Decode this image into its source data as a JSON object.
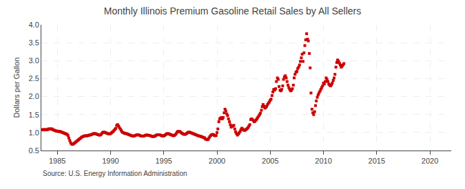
{
  "chart_data": {
    "type": "scatter",
    "title": "Monthly Illinois Premium Gasoline Retail Sales by All Sellers",
    "ylabel": "Dollars per Gallon",
    "annotations": [
      "Source: U.S. Energy Information Administration"
    ],
    "color": "#cc0000",
    "marker": "square",
    "grid": true,
    "xlim": [
      1983.5,
      2022
    ],
    "ylim": [
      0.5,
      4.0
    ],
    "xticks": [
      1985,
      1990,
      1995,
      2000,
      2005,
      2010,
      2015,
      2020
    ],
    "yticks": [
      0.5,
      {
        "value": 1.0,
        "label": "1.0"
      },
      1.5,
      {
        "value": 2.0,
        "label": "2.0"
      },
      2.5,
      {
        "value": 3.0,
        "label": "3.0"
      },
      3.5,
      {
        "value": 4.0,
        "label": "4.0"
      }
    ],
    "x": [
      1983.58,
      1983.67,
      1983.75,
      1983.83,
      1983.92,
      1984.0,
      1984.08,
      1984.17,
      1984.25,
      1984.33,
      1984.42,
      1984.5,
      1984.58,
      1984.67,
      1984.75,
      1984.83,
      1984.92,
      1985.0,
      1985.08,
      1985.17,
      1985.25,
      1985.33,
      1985.42,
      1985.5,
      1985.58,
      1985.67,
      1985.75,
      1985.83,
      1985.92,
      1986.0,
      1986.08,
      1986.17,
      1986.25,
      1986.33,
      1986.42,
      1986.5,
      1986.58,
      1986.67,
      1986.75,
      1986.83,
      1986.92,
      1987.0,
      1987.08,
      1987.17,
      1987.25,
      1987.33,
      1987.42,
      1987.5,
      1987.58,
      1987.67,
      1987.75,
      1987.83,
      1987.92,
      1988.0,
      1988.08,
      1988.17,
      1988.25,
      1988.33,
      1988.42,
      1988.5,
      1988.58,
      1988.67,
      1988.75,
      1988.83,
      1988.92,
      1989.0,
      1989.08,
      1989.17,
      1989.25,
      1989.33,
      1989.42,
      1989.5,
      1989.58,
      1989.67,
      1989.75,
      1989.83,
      1989.92,
      1990.0,
      1990.08,
      1990.17,
      1990.25,
      1990.33,
      1990.42,
      1990.5,
      1990.58,
      1990.67,
      1990.75,
      1990.83,
      1990.92,
      1991.0,
      1991.08,
      1991.17,
      1991.25,
      1991.33,
      1991.42,
      1991.5,
      1991.58,
      1991.67,
      1991.75,
      1991.83,
      1991.92,
      1992.0,
      1992.08,
      1992.17,
      1992.25,
      1992.33,
      1992.42,
      1992.5,
      1992.58,
      1992.67,
      1992.75,
      1992.83,
      1992.92,
      1993.0,
      1993.08,
      1993.17,
      1993.25,
      1993.33,
      1993.42,
      1993.5,
      1993.58,
      1993.67,
      1993.75,
      1993.83,
      1993.92,
      1994.0,
      1994.08,
      1994.17,
      1994.25,
      1994.33,
      1994.42,
      1994.5,
      1994.58,
      1994.67,
      1994.75,
      1994.83,
      1994.92,
      1995.0,
      1995.08,
      1995.17,
      1995.25,
      1995.33,
      1995.42,
      1995.5,
      1995.58,
      1995.67,
      1995.75,
      1995.83,
      1995.92,
      1996.0,
      1996.08,
      1996.17,
      1996.25,
      1996.33,
      1996.42,
      1996.5,
      1996.58,
      1996.67,
      1996.75,
      1996.83,
      1996.92,
      1997.0,
      1997.08,
      1997.17,
      1997.25,
      1997.33,
      1997.42,
      1997.5,
      1997.58,
      1997.67,
      1997.75,
      1997.83,
      1997.92,
      1998.0,
      1998.08,
      1998.17,
      1998.25,
      1998.33,
      1998.42,
      1998.5,
      1998.58,
      1998.67,
      1998.75,
      1998.83,
      1998.92,
      1999.0,
      1999.08,
      1999.17,
      1999.25,
      1999.33,
      1999.42,
      1999.5,
      1999.58,
      1999.67,
      1999.75,
      1999.83,
      1999.92,
      2000.0,
      2000.08,
      2000.17,
      2000.25,
      2000.33,
      2000.42,
      2000.5,
      2000.58,
      2000.67,
      2000.75,
      2000.83,
      2000.92,
      2001.0,
      2001.08,
      2001.17,
      2001.25,
      2001.33,
      2001.42,
      2001.5,
      2001.58,
      2001.67,
      2001.75,
      2001.83,
      2001.92,
      2002.0,
      2002.08,
      2002.17,
      2002.25,
      2002.33,
      2002.42,
      2002.5,
      2002.58,
      2002.67,
      2002.75,
      2002.83,
      2002.92,
      2003.0,
      2003.08,
      2003.17,
      2003.25,
      2003.33,
      2003.42,
      2003.5,
      2003.58,
      2003.67,
      2003.75,
      2003.83,
      2003.92,
      2004.0,
      2004.08,
      2004.17,
      2004.25,
      2004.33,
      2004.42,
      2004.5,
      2004.58,
      2004.67,
      2004.75,
      2004.83,
      2004.92,
      2005.0,
      2005.08,
      2005.17,
      2005.25,
      2005.33,
      2005.42,
      2005.5,
      2005.58,
      2005.67,
      2005.75,
      2005.83,
      2005.92,
      2006.0,
      2006.08,
      2006.17,
      2006.25,
      2006.33,
      2006.42,
      2006.5,
      2006.58,
      2006.67,
      2006.75,
      2006.83,
      2006.92,
      2007.0,
      2007.08,
      2007.17,
      2007.25,
      2007.33,
      2007.42,
      2007.5,
      2007.58,
      2007.67,
      2007.75,
      2007.83,
      2007.92,
      2008.0,
      2008.08,
      2008.17,
      2008.25,
      2008.33,
      2008.42,
      2008.5,
      2008.58,
      2008.67,
      2008.75,
      2008.83,
      2008.92,
      2009.0,
      2009.08,
      2009.17,
      2009.25,
      2009.33,
      2009.42,
      2009.5,
      2009.58,
      2009.67,
      2009.75,
      2009.83,
      2009.92,
      2010.0,
      2010.08,
      2010.17,
      2010.25,
      2010.33,
      2010.42,
      2010.5,
      2010.58,
      2010.67,
      2010.75,
      2010.83,
      2010.92,
      2011.0,
      2011.08,
      2011.17,
      2011.25,
      2011.33,
      2011.42,
      2011.5,
      2011.58,
      2011.67,
      2011.75,
      2011.83,
      2011.92
    ],
    "values": [
      1.08,
      1.08,
      1.08,
      1.08,
      1.08,
      1.08,
      1.08,
      1.1,
      1.1,
      1.1,
      1.1,
      1.1,
      1.08,
      1.07,
      1.06,
      1.05,
      1.04,
      1.04,
      1.03,
      1.03,
      1.03,
      1.02,
      1.01,
      1.0,
      0.99,
      0.98,
      0.97,
      0.96,
      0.95,
      0.92,
      0.85,
      0.78,
      0.72,
      0.68,
      0.67,
      0.68,
      0.7,
      0.72,
      0.74,
      0.76,
      0.78,
      0.8,
      0.82,
      0.84,
      0.86,
      0.88,
      0.89,
      0.9,
      0.91,
      0.91,
      0.91,
      0.91,
      0.92,
      0.93,
      0.93,
      0.94,
      0.95,
      0.96,
      0.97,
      0.97,
      0.97,
      0.96,
      0.95,
      0.94,
      0.93,
      0.93,
      0.94,
      0.97,
      1.0,
      1.01,
      1.01,
      1.0,
      0.99,
      0.98,
      0.97,
      0.96,
      0.96,
      0.97,
      0.99,
      1.01,
      1.03,
      1.06,
      1.09,
      1.12,
      1.2,
      1.22,
      1.18,
      1.14,
      1.1,
      1.06,
      1.02,
      1.0,
      0.99,
      0.98,
      0.97,
      0.97,
      0.96,
      0.95,
      0.94,
      0.93,
      0.92,
      0.91,
      0.9,
      0.9,
      0.91,
      0.92,
      0.93,
      0.94,
      0.94,
      0.93,
      0.92,
      0.91,
      0.9,
      0.9,
      0.9,
      0.91,
      0.92,
      0.93,
      0.93,
      0.93,
      0.92,
      0.92,
      0.91,
      0.9,
      0.89,
      0.89,
      0.89,
      0.9,
      0.92,
      0.93,
      0.94,
      0.94,
      0.94,
      0.93,
      0.92,
      0.91,
      0.9,
      0.91,
      0.92,
      0.94,
      0.96,
      0.97,
      0.97,
      0.96,
      0.95,
      0.94,
      0.93,
      0.92,
      0.91,
      0.92,
      0.94,
      0.97,
      1.01,
      1.03,
      1.03,
      1.03,
      1.01,
      0.99,
      0.97,
      0.96,
      0.95,
      0.95,
      0.96,
      0.98,
      1.0,
      1.01,
      1.01,
      1.0,
      0.99,
      0.98,
      0.97,
      0.96,
      0.95,
      0.94,
      0.93,
      0.92,
      0.91,
      0.9,
      0.9,
      0.89,
      0.88,
      0.87,
      0.86,
      0.85,
      0.82,
      0.81,
      0.8,
      0.81,
      0.85,
      0.89,
      0.92,
      0.94,
      0.95,
      0.94,
      0.92,
      0.91,
      0.92,
      1.0,
      1.1,
      1.3,
      1.38,
      1.4,
      1.42,
      1.38,
      1.42,
      1.55,
      1.65,
      1.6,
      1.52,
      1.47,
      1.38,
      1.3,
      1.22,
      1.15,
      1.18,
      1.18,
      1.2,
      1.1,
      1.02,
      0.97,
      0.93,
      0.96,
      0.99,
      1.03,
      1.08,
      1.12,
      1.1,
      1.07,
      1.06,
      1.07,
      1.09,
      1.11,
      1.14,
      1.18,
      1.22,
      1.36,
      1.38,
      1.36,
      1.33,
      1.3,
      1.32,
      1.35,
      1.38,
      1.42,
      1.46,
      1.5,
      1.54,
      1.62,
      1.72,
      1.78,
      1.73,
      1.68,
      1.7,
      1.73,
      1.78,
      1.82,
      1.85,
      1.9,
      1.93,
      2.03,
      2.13,
      2.2,
      2.18,
      2.22,
      2.42,
      2.52,
      2.48,
      2.28,
      2.18,
      2.16,
      2.2,
      2.3,
      2.48,
      2.55,
      2.58,
      2.52,
      2.42,
      2.32,
      2.25,
      2.2,
      2.16,
      2.18,
      2.22,
      2.32,
      2.52,
      2.62,
      2.68,
      2.7,
      2.78,
      2.82,
      2.88,
      2.98,
      3.08,
      3.18,
      2.98,
      3.22,
      3.42,
      3.58,
      3.75,
      3.6,
      3.55,
      3.2,
      2.8,
      2.1,
      1.65,
      1.55,
      1.5,
      1.58,
      1.75,
      1.88,
      1.98,
      2.05,
      2.1,
      2.15,
      2.2,
      2.25,
      2.3,
      2.38,
      2.35,
      2.42,
      2.52,
      2.48,
      2.42,
      2.35,
      2.32,
      2.3,
      2.33,
      2.38,
      2.45,
      2.52,
      2.62,
      2.82,
      2.95,
      3.02,
      2.98,
      2.93,
      2.88,
      2.82,
      2.85,
      2.88,
      2.92
    ]
  }
}
